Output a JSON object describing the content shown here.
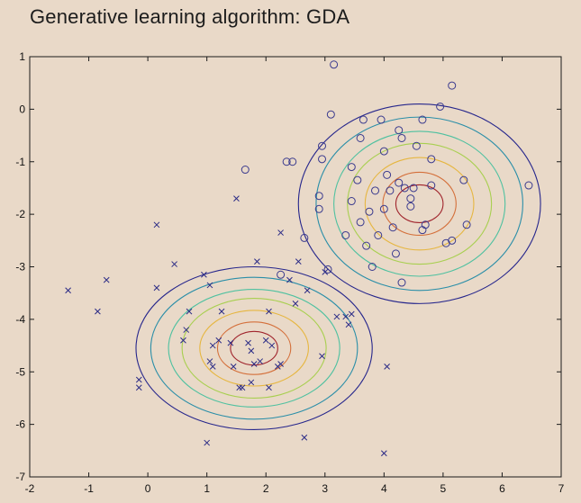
{
  "chart_data": {
    "type": "scatter",
    "title": "Generative learning algorithm: GDA",
    "xlim": [
      -2,
      7
    ],
    "ylim": [
      -7,
      1
    ],
    "x_ticks": [
      "-2",
      "-1",
      "0",
      "1",
      "2",
      "3",
      "4",
      "5",
      "6",
      "7"
    ],
    "y_ticks": [
      "1",
      "0",
      "-1",
      "-2",
      "-3",
      "-4",
      "-5",
      "-6",
      "-7"
    ],
    "grid": false,
    "series": [
      {
        "marker": "x",
        "color": "#2b2b86",
        "points": [
          [
            -1.35,
            -3.45
          ],
          [
            -0.85,
            -3.85
          ],
          [
            -0.7,
            -3.25
          ],
          [
            -0.15,
            -5.15
          ],
          [
            -0.15,
            -5.3
          ],
          [
            0.15,
            -3.4
          ],
          [
            0.15,
            -2.2
          ],
          [
            0.45,
            -2.95
          ],
          [
            0.6,
            -4.4
          ],
          [
            0.65,
            -4.2
          ],
          [
            0.7,
            -3.85
          ],
          [
            0.95,
            -3.15
          ],
          [
            1.0,
            -6.35
          ],
          [
            1.05,
            -3.35
          ],
          [
            1.05,
            -4.8
          ],
          [
            1.1,
            -4.9
          ],
          [
            1.1,
            -4.5
          ],
          [
            1.2,
            -4.4
          ],
          [
            1.25,
            -3.85
          ],
          [
            1.4,
            -4.45
          ],
          [
            1.45,
            -4.9
          ],
          [
            1.5,
            -1.7
          ],
          [
            1.55,
            -5.3
          ],
          [
            1.6,
            -5.3
          ],
          [
            1.7,
            -4.45
          ],
          [
            1.75,
            -4.6
          ],
          [
            1.75,
            -5.2
          ],
          [
            1.8,
            -4.85
          ],
          [
            1.85,
            -2.9
          ],
          [
            1.9,
            -4.8
          ],
          [
            2.0,
            -4.4
          ],
          [
            2.05,
            -5.3
          ],
          [
            2.05,
            -3.85
          ],
          [
            2.1,
            -4.5
          ],
          [
            2.2,
            -4.9
          ],
          [
            2.25,
            -4.85
          ],
          [
            2.25,
            -2.35
          ],
          [
            2.4,
            -3.25
          ],
          [
            2.5,
            -3.7
          ],
          [
            2.55,
            -2.9
          ],
          [
            2.65,
            -6.25
          ],
          [
            2.7,
            -3.45
          ],
          [
            2.95,
            -4.7
          ],
          [
            3.0,
            -3.1
          ],
          [
            3.2,
            -3.95
          ],
          [
            3.35,
            -3.95
          ],
          [
            3.4,
            -4.1
          ],
          [
            3.45,
            -3.9
          ],
          [
            4.0,
            -6.55
          ],
          [
            4.05,
            -4.9
          ]
        ]
      },
      {
        "marker": "o",
        "color": "#3a3a8e",
        "points": [
          [
            1.65,
            -1.15
          ],
          [
            2.35,
            -1.0
          ],
          [
            2.45,
            -1.0
          ],
          [
            2.65,
            -2.45
          ],
          [
            2.25,
            -3.15
          ],
          [
            2.9,
            -1.65
          ],
          [
            2.9,
            -1.9
          ],
          [
            2.95,
            -0.7
          ],
          [
            2.95,
            -0.95
          ],
          [
            3.05,
            -3.05
          ],
          [
            3.1,
            -0.1
          ],
          [
            3.15,
            0.85
          ],
          [
            3.35,
            -2.4
          ],
          [
            3.45,
            -1.75
          ],
          [
            3.45,
            -1.1
          ],
          [
            3.55,
            -1.35
          ],
          [
            3.6,
            -0.55
          ],
          [
            3.6,
            -2.15
          ],
          [
            3.65,
            -0.2
          ],
          [
            3.7,
            -2.6
          ],
          [
            3.75,
            -1.95
          ],
          [
            3.8,
            -3.0
          ],
          [
            3.85,
            -1.55
          ],
          [
            3.9,
            -2.4
          ],
          [
            3.95,
            -0.2
          ],
          [
            4.0,
            -0.8
          ],
          [
            4.0,
            -1.9
          ],
          [
            4.05,
            -1.25
          ],
          [
            4.1,
            -1.55
          ],
          [
            4.15,
            -2.25
          ],
          [
            4.2,
            -2.75
          ],
          [
            4.25,
            -1.4
          ],
          [
            4.25,
            -0.4
          ],
          [
            4.3,
            -0.55
          ],
          [
            4.3,
            -3.3
          ],
          [
            4.35,
            -1.5
          ],
          [
            4.45,
            -1.7
          ],
          [
            4.45,
            -1.85
          ],
          [
            4.5,
            -1.5
          ],
          [
            4.55,
            -0.7
          ],
          [
            4.65,
            -2.3
          ],
          [
            4.65,
            -0.2
          ],
          [
            4.7,
            -2.2
          ],
          [
            4.8,
            -1.45
          ],
          [
            4.8,
            -0.95
          ],
          [
            4.95,
            0.05
          ],
          [
            5.05,
            -2.55
          ],
          [
            5.15,
            -2.5
          ],
          [
            5.15,
            0.45
          ],
          [
            5.35,
            -1.35
          ],
          [
            5.4,
            -2.2
          ],
          [
            6.45,
            -1.45
          ]
        ]
      }
    ],
    "contours": [
      {
        "center": [
          1.8,
          -4.55
        ],
        "radii_x": [
          2.0,
          1.75,
          1.45,
          1.22,
          0.92,
          0.62,
          0.4
        ],
        "radii_y": [
          1.55,
          1.35,
          1.12,
          0.95,
          0.72,
          0.5,
          0.32
        ]
      },
      {
        "center": [
          4.6,
          -1.8
        ],
        "radii_x": [
          2.05,
          1.75,
          1.45,
          1.22,
          0.92,
          0.62,
          0.4
        ],
        "radii_y": [
          1.9,
          1.65,
          1.38,
          1.15,
          0.88,
          0.6,
          0.36
        ]
      }
    ],
    "contour_colors": [
      "#26268c",
      "#2a8ea8",
      "#4fc1a0",
      "#a8cf50",
      "#e6b640",
      "#d46f3a",
      "#a0242c"
    ]
  }
}
